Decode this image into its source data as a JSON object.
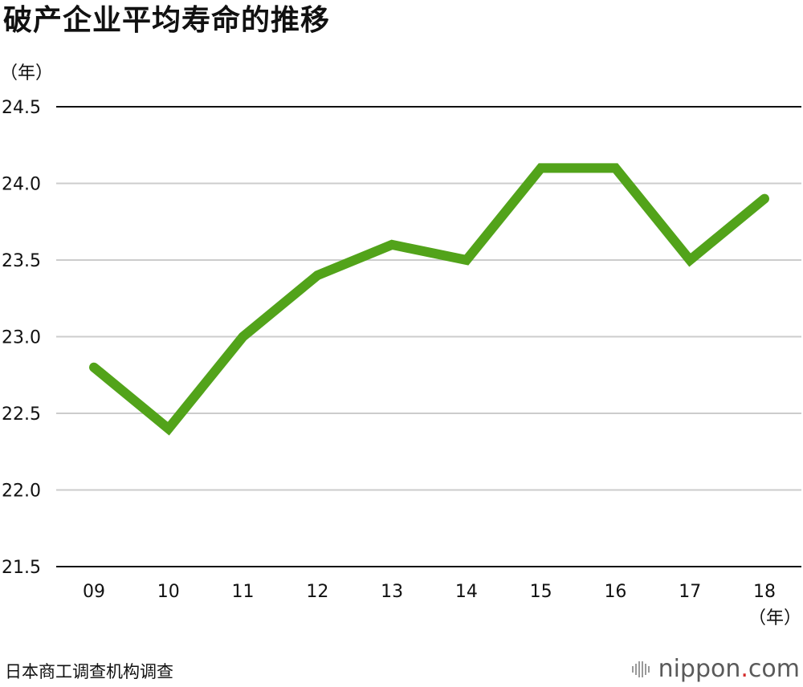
{
  "title": "破产企业平均寿命的推移",
  "chart_data": {
    "type": "line",
    "title": "破产企业平均寿命的推移",
    "y_unit": "（年）",
    "x_unit": "（年）",
    "categories": [
      "09",
      "10",
      "11",
      "12",
      "13",
      "14",
      "15",
      "16",
      "17",
      "18"
    ],
    "values": [
      22.8,
      22.4,
      23.0,
      23.4,
      23.6,
      23.5,
      24.1,
      24.1,
      23.5,
      23.9
    ],
    "ylim": [
      21.5,
      24.5
    ],
    "yticks": [
      "21.5",
      "22.0",
      "22.5",
      "23.0",
      "23.5",
      "24.0",
      "24.5"
    ],
    "grid": true,
    "line_color": "#52a31a"
  },
  "source": "日本商工调查机构调查",
  "brand": {
    "name": "nippon",
    "dot": ".",
    "suffix": "com",
    "dot_color": "#d42b2b"
  }
}
